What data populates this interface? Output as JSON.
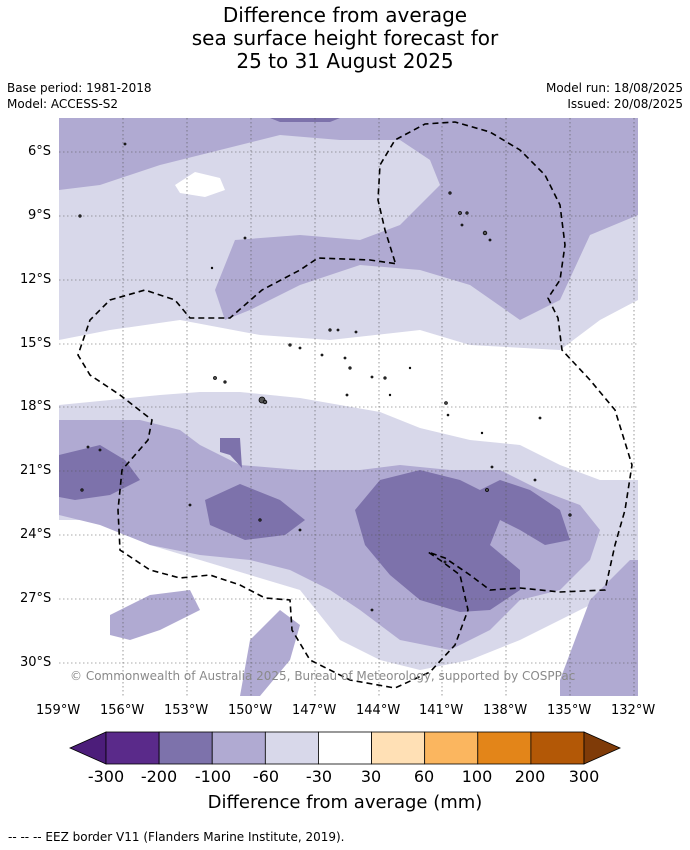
{
  "title_lines": [
    "Difference from average",
    "sea surface height forecast for",
    "25 to 31 August 2025"
  ],
  "meta_left": [
    "Base period: 1981-2018",
    "Model: ACCESS-S2"
  ],
  "meta_right": [
    "Model run: 18/08/2025",
    "Issued: 20/08/2025"
  ],
  "lat_labels": [
    "6°S",
    "9°S",
    "12°S",
    "15°S",
    "18°S",
    "21°S",
    "24°S",
    "27°S",
    "30°S"
  ],
  "lon_labels": [
    "159°W",
    "156°W",
    "153°W",
    "150°W",
    "147°W",
    "144°W",
    "141°W",
    "138°W",
    "135°W",
    "132°W"
  ],
  "copyright": "© Commonwealth of Australia 2025, Bureau of Meteorology, supported by COSPPac",
  "colorbar": {
    "labels": [
      "-300",
      "-200",
      "-100",
      "-60",
      "-30",
      "30",
      "60",
      "100",
      "200",
      "300"
    ],
    "colors": [
      "#4c1d7a",
      "#5a2a8a",
      "#7d72ab",
      "#b0aad2",
      "#d8d8ea",
      "#ffffff",
      "#ffe0b5",
      "#fbb65f",
      "#e38519",
      "#b35806",
      "#7f3b08"
    ],
    "title": "Difference from average (mm)"
  },
  "footer": "--  --  -- EEZ border V11 (Flanders Marine Institute, 2019)."
}
